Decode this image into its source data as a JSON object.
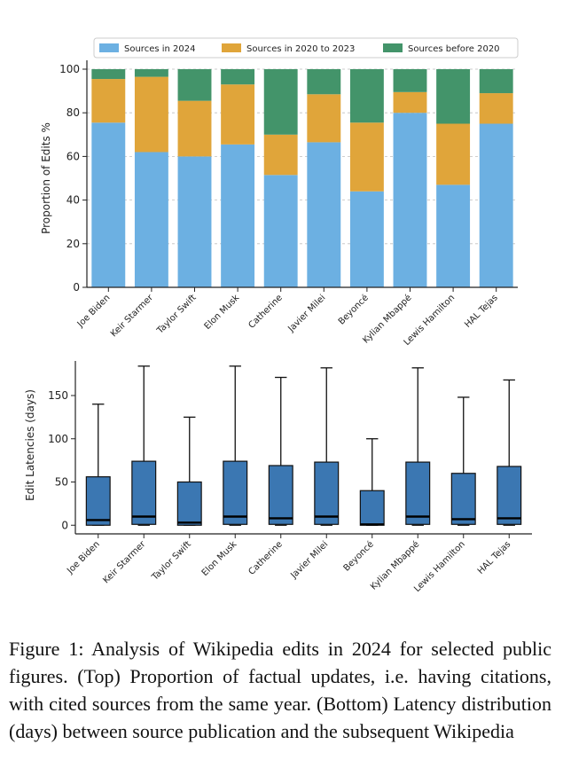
{
  "chart_data": [
    {
      "type": "bar",
      "stacked": true,
      "title": "",
      "xlabel": "",
      "ylabel": "Proportion of Edits %",
      "ylim": [
        0,
        100
      ],
      "yticks": [
        0,
        20,
        40,
        60,
        80,
        100
      ],
      "grid": "horizontal dashed",
      "legend_position": "top",
      "categories": [
        "Joe Biden",
        "Keir Starmer",
        "Taylor Swift",
        "Elon Musk",
        "Catherine",
        "Javier Milei",
        "Beyoncé",
        "Kylian Mbappé",
        "Lewis Hamilton",
        "HAL Tejas"
      ],
      "series": [
        {
          "name": "Sources in 2024",
          "color": "#6cb0e2",
          "values": [
            75.5,
            62,
            60,
            65.5,
            51.5,
            66.5,
            44,
            80,
            47,
            75
          ]
        },
        {
          "name": "Sources in 2020 to 2023",
          "color": "#e0a53a",
          "values": [
            20,
            34.5,
            25.5,
            27.5,
            18.5,
            22,
            31.5,
            9.5,
            28,
            14
          ]
        },
        {
          "name": "Sources before 2020",
          "color": "#43946a",
          "values": [
            4.5,
            3.5,
            14.5,
            7,
            30,
            11.5,
            24.5,
            10.5,
            25,
            11
          ]
        }
      ]
    },
    {
      "type": "box",
      "title": "",
      "xlabel": "",
      "ylabel": "Edit Latencies (days)",
      "ylim": [
        -10,
        190
      ],
      "yticks": [
        0,
        50,
        100,
        150
      ],
      "grid": false,
      "box_color": "#3b77b2",
      "categories": [
        "Joe Biden",
        "Keir Starmer",
        "Taylor Swift",
        "Elon Musk",
        "Catherine",
        "Javier Milei",
        "Beyoncé",
        "Kylian Mbappé",
        "Lewis Hamilton",
        "HAL Tejas"
      ],
      "boxes": [
        {
          "whislo": 0,
          "q1": 0,
          "med": 6,
          "q3": 56,
          "whishi": 140
        },
        {
          "whislo": 0,
          "q1": 1,
          "med": 10,
          "q3": 74,
          "whishi": 184
        },
        {
          "whislo": 0,
          "q1": 0,
          "med": 3,
          "q3": 50,
          "whishi": 125
        },
        {
          "whislo": 0,
          "q1": 1,
          "med": 10,
          "q3": 74,
          "whishi": 184
        },
        {
          "whislo": 0,
          "q1": 1,
          "med": 8,
          "q3": 69,
          "whishi": 171
        },
        {
          "whislo": 0,
          "q1": 1,
          "med": 10,
          "q3": 73,
          "whishi": 182
        },
        {
          "whislo": 0,
          "q1": 0,
          "med": 1,
          "q3": 40,
          "whishi": 100
        },
        {
          "whislo": 0,
          "q1": 1,
          "med": 10,
          "q3": 73,
          "whishi": 182
        },
        {
          "whislo": 0,
          "q1": 1,
          "med": 7,
          "q3": 60,
          "whishi": 148
        },
        {
          "whislo": 0,
          "q1": 1,
          "med": 8,
          "q3": 68,
          "whishi": 168
        }
      ]
    }
  ],
  "caption": "Figure 1: Analysis of Wikipedia edits in 2024 for selected public figures. (Top) Proportion of factual updates, i.e. having citations, with cited sources from the same year. (Bottom) Latency distribution (days) between source publication and the subsequent Wikipedia"
}
